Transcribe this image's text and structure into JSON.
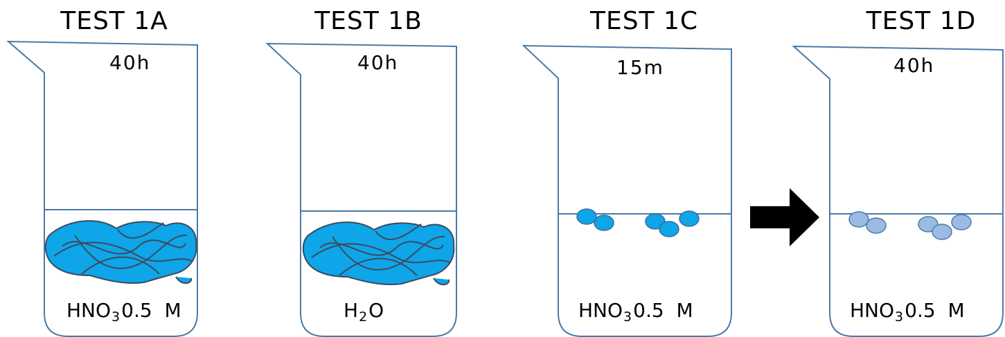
{
  "beakers": [
    {
      "title": "TEST 1A",
      "time": "40h",
      "solution": {
        "formula": "HNO",
        "sub": "3",
        "tail": "0.5  M"
      },
      "contents": "blue-mass"
    },
    {
      "title": "TEST 1B",
      "time": "40h",
      "solution": {
        "formula": "H",
        "sub": "2",
        "tail": "O"
      },
      "contents": "blue-mass"
    },
    {
      "title": "TEST 1C",
      "time": "15m",
      "solution": {
        "formula": "HNO",
        "sub": "3",
        "tail": "0.5  M"
      },
      "contents": "blue-particles"
    },
    {
      "title": "TEST 1D",
      "time": "40h",
      "solution": {
        "formula": "HNO",
        "sub": "3",
        "tail": "0.5  M"
      },
      "contents": "pale-blue-particles"
    }
  ],
  "arrow": {
    "icon": "right-arrow-icon",
    "color": "#000000"
  },
  "colors": {
    "outline": "#4a7aa6",
    "blue_fill": "#0ea5e9",
    "pale_fill": "#9bbbe3"
  }
}
